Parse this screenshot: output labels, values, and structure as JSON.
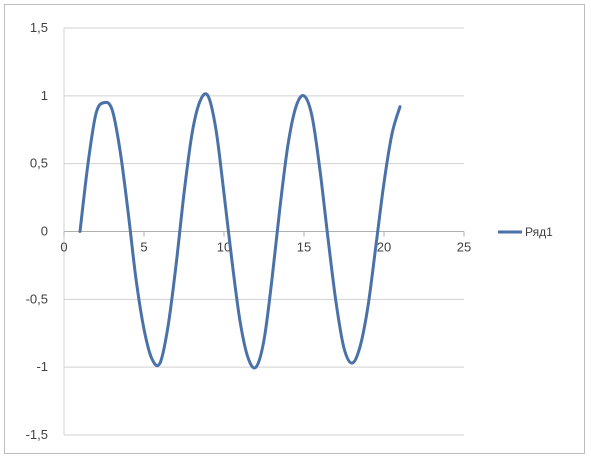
{
  "chart_data": {
    "type": "line",
    "series": [
      {
        "name": "Ряд1",
        "color": "#4a72a8",
        "x": [
          1,
          1.5,
          2,
          2.5,
          3,
          3.5,
          4,
          4.5,
          5,
          5.5,
          6,
          6.5,
          7,
          7.5,
          8,
          8.5,
          9,
          9.5,
          10,
          10.5,
          11,
          11.5,
          12,
          12.5,
          13,
          13.5,
          14,
          14.5,
          15,
          15.5,
          16,
          16.5,
          17,
          17.5,
          18,
          18.5,
          19,
          19.5,
          20,
          20.5,
          21
        ],
        "values": [
          0.0,
          0.5,
          0.87,
          0.95,
          0.9,
          0.6,
          0.15,
          -0.35,
          -0.72,
          -0.94,
          -0.97,
          -0.7,
          -0.25,
          0.28,
          0.72,
          0.96,
          1.0,
          0.75,
          0.28,
          -0.22,
          -0.66,
          -0.93,
          -1.0,
          -0.8,
          -0.35,
          0.18,
          0.64,
          0.92,
          1.0,
          0.85,
          0.45,
          -0.05,
          -0.52,
          -0.86,
          -0.97,
          -0.85,
          -0.55,
          -0.1,
          0.36,
          0.72,
          0.92
        ]
      }
    ],
    "xlim": [
      0,
      25
    ],
    "ylim": [
      -1.5,
      1.5
    ],
    "x_ticks": [
      "0",
      "5",
      "10",
      "15",
      "20",
      "25"
    ],
    "y_ticks": [
      "1,5",
      "1",
      "0,5",
      "0",
      "-0,5",
      "-1",
      "-1,5"
    ],
    "y_tick_values": [
      1.5,
      1,
      0.5,
      0,
      -0.5,
      -1,
      -1.5
    ],
    "x_tick_values": [
      0,
      5,
      10,
      15,
      20,
      25
    ],
    "grid": "horizontal",
    "legend_position": "right",
    "title": "",
    "xlabel": "",
    "ylabel": ""
  }
}
